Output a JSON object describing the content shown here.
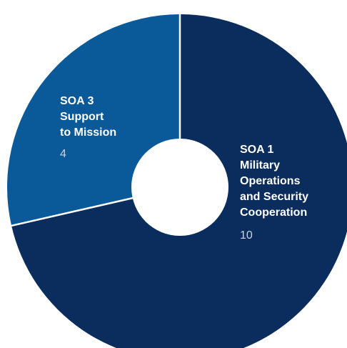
{
  "chart_data": {
    "type": "pie",
    "donut": true,
    "slices": [
      {
        "label_lines": [
          "SOA 1",
          "Military",
          "Operations",
          "and Security",
          "Cooperation"
        ],
        "value": 10,
        "value_label": "10",
        "color": "#0b2d5e"
      },
      {
        "label_lines": [
          "SOA 3",
          "Support",
          "to Mission"
        ],
        "value": 4,
        "value_label": "4",
        "color": "#0a5a99"
      }
    ],
    "start": "12 o'clock",
    "direction": "clockwise",
    "separator_color": "#ffffff",
    "center_color": "#ffffff"
  }
}
